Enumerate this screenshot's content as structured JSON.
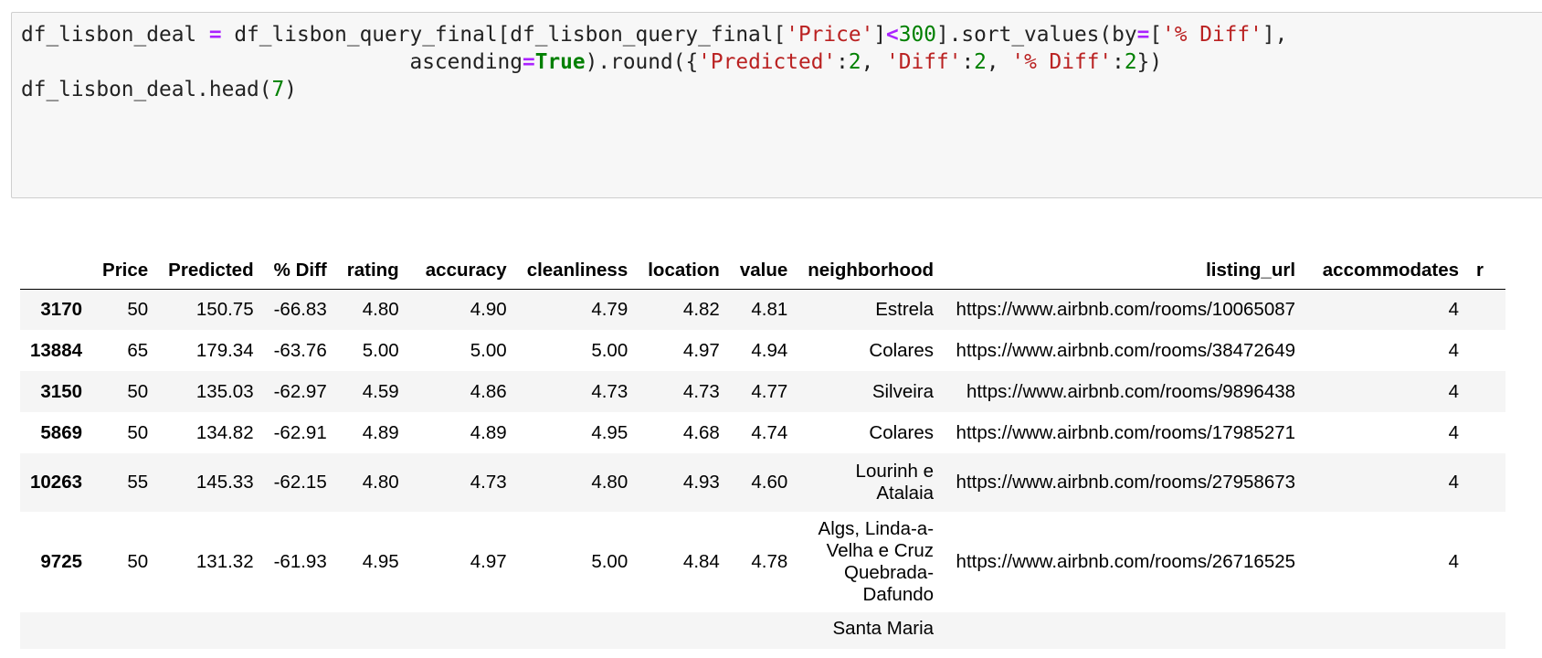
{
  "code_cell": {
    "lines": [
      [
        {
          "t": "df_lisbon_deal ",
          "c": ""
        },
        {
          "t": "=",
          "c": "op"
        },
        {
          "t": " df_lisbon_query_final[df_lisbon_query_final[",
          "c": ""
        },
        {
          "t": "'Price'",
          "c": "str"
        },
        {
          "t": "]",
          "c": ""
        },
        {
          "t": "<",
          "c": "op"
        },
        {
          "t": "300",
          "c": "num"
        },
        {
          "t": "].sort_values(by",
          "c": ""
        },
        {
          "t": "=",
          "c": "op"
        },
        {
          "t": "[",
          "c": ""
        },
        {
          "t": "'% Diff'",
          "c": "str"
        },
        {
          "t": "],",
          "c": ""
        }
      ],
      [
        {
          "t": "                               ascending",
          "c": ""
        },
        {
          "t": "=",
          "c": "op"
        },
        {
          "t": "True",
          "c": "kw"
        },
        {
          "t": ").round({",
          "c": ""
        },
        {
          "t": "'Predicted'",
          "c": "str"
        },
        {
          "t": ":",
          "c": ""
        },
        {
          "t": "2",
          "c": "num"
        },
        {
          "t": ", ",
          "c": ""
        },
        {
          "t": "'Diff'",
          "c": "str"
        },
        {
          "t": ":",
          "c": ""
        },
        {
          "t": "2",
          "c": "num"
        },
        {
          "t": ", ",
          "c": ""
        },
        {
          "t": "'% Diff'",
          "c": "str"
        },
        {
          "t": ":",
          "c": ""
        },
        {
          "t": "2",
          "c": "num"
        },
        {
          "t": "})",
          "c": ""
        }
      ],
      [
        {
          "t": "df_lisbon_deal.head(",
          "c": ""
        },
        {
          "t": "7",
          "c": "num"
        },
        {
          "t": ")",
          "c": ""
        }
      ]
    ]
  },
  "colors": {
    "operator": "#aa22ff",
    "string": "#ba2121",
    "number": "#008000",
    "keyword": "#008000",
    "cell_background": "#f7f7f7",
    "row_stripe": "#f5f5f5"
  },
  "table": {
    "columns": [
      "",
      "Price",
      "Predicted",
      "% Diff",
      "rating",
      "accuracy",
      "cleanliness",
      "location",
      "value",
      "neighborhood",
      "listing_url",
      "accommodates",
      "r"
    ],
    "rows": [
      {
        "index": "3170",
        "cells": [
          "50",
          "150.75",
          "-66.83",
          "4.80",
          "4.90",
          "4.79",
          "4.82",
          "4.81",
          "Estrela",
          "https://www.airbnb.com/rooms/10065087",
          "4",
          ""
        ]
      },
      {
        "index": "13884",
        "cells": [
          "65",
          "179.34",
          "-63.76",
          "5.00",
          "5.00",
          "5.00",
          "4.97",
          "4.94",
          "Colares",
          "https://www.airbnb.com/rooms/38472649",
          "4",
          ""
        ]
      },
      {
        "index": "3150",
        "cells": [
          "50",
          "135.03",
          "-62.97",
          "4.59",
          "4.86",
          "4.73",
          "4.73",
          "4.77",
          "Silveira",
          "https://www.airbnb.com/rooms/9896438",
          "4",
          ""
        ]
      },
      {
        "index": "5869",
        "cells": [
          "50",
          "134.82",
          "-62.91",
          "4.89",
          "4.89",
          "4.95",
          "4.68",
          "4.74",
          "Colares",
          "https://www.airbnb.com/rooms/17985271",
          "4",
          ""
        ]
      },
      {
        "index": "10263",
        "cells": [
          "55",
          "145.33",
          "-62.15",
          "4.80",
          "4.73",
          "4.80",
          "4.93",
          "4.60",
          "Lourinh e Atalaia",
          "https://www.airbnb.com/rooms/27958673",
          "4",
          ""
        ]
      },
      {
        "index": "9725",
        "cells": [
          "50",
          "131.32",
          "-61.93",
          "4.95",
          "4.97",
          "5.00",
          "4.84",
          "4.78",
          "Algs, Linda-a-Velha e Cruz Quebrada-Dafundo",
          "https://www.airbnb.com/rooms/26716525",
          "4",
          ""
        ]
      },
      {
        "index": "",
        "cells": [
          "",
          "",
          "",
          "",
          "",
          "",
          "",
          "",
          "Santa Maria",
          "",
          "",
          ""
        ]
      }
    ]
  }
}
